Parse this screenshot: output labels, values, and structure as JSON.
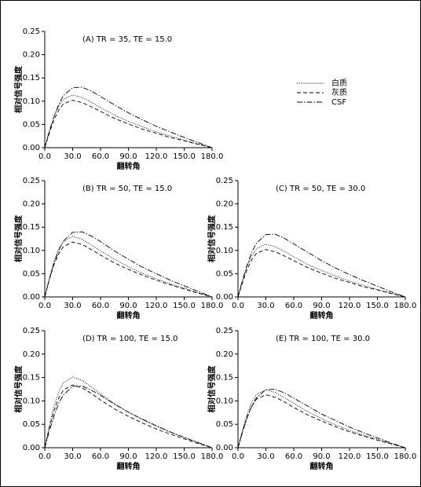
{
  "legend": [
    {
      "name": "白质",
      "color": "#000000",
      "dash": "1,1.5"
    },
    {
      "name": "灰质",
      "color": "#000000",
      "dash": "5,3"
    },
    {
      "name": "CSF",
      "color": "#000000",
      "dash": "7,2,1.5,2"
    }
  ],
  "chart_data": [
    {
      "type": "line",
      "title": "(A) TR = 35, TE = 15.0",
      "x_label": "翻转角",
      "y_label": "相对信号强度",
      "x": [
        0,
        5,
        10,
        15,
        20,
        30,
        40,
        50,
        60,
        75,
        90,
        105,
        120,
        135,
        150,
        165,
        180
      ],
      "series": [
        {
          "values": [
            0,
            0.036,
            0.067,
            0.089,
            0.104,
            0.113,
            0.108,
            0.098,
            0.086,
            0.07,
            0.057,
            0.045,
            0.034,
            0.025,
            0.016,
            0.008,
            0
          ]
        },
        {
          "values": [
            0,
            0.032,
            0.06,
            0.081,
            0.094,
            0.102,
            0.097,
            0.088,
            0.078,
            0.063,
            0.051,
            0.04,
            0.031,
            0.022,
            0.015,
            0.007,
            0
          ]
        },
        {
          "values": [
            0,
            0.036,
            0.067,
            0.093,
            0.112,
            0.129,
            0.13,
            0.122,
            0.11,
            0.092,
            0.075,
            0.06,
            0.046,
            0.034,
            0.022,
            0.011,
            0
          ]
        }
      ],
      "xlim": [
        0,
        180
      ],
      "ylim": [
        0,
        0.25
      ],
      "xticks": [
        {
          "value": 0,
          "label": "0.0"
        },
        {
          "value": 30,
          "label": "30.0"
        },
        {
          "value": 60,
          "label": "60.0"
        },
        {
          "value": 90,
          "label": "90.0"
        },
        {
          "value": 120,
          "label": "120.0"
        },
        {
          "value": 150,
          "label": "150.0"
        },
        {
          "value": 180,
          "label": "180.0"
        }
      ],
      "yticks": [
        {
          "value": 0,
          "label": "0.00"
        },
        {
          "value": 0.05,
          "label": "0.05"
        },
        {
          "value": 0.1,
          "label": "0.10"
        },
        {
          "value": 0.15,
          "label": "0.15"
        },
        {
          "value": 0.2,
          "label": "0.20"
        },
        {
          "value": 0.25,
          "label": "0.25"
        }
      ]
    },
    {
      "type": "line",
      "title": "(B) TR = 50, TE = 15.0",
      "x_label": "翻转角",
      "y_label": "相对信号强度",
      "x": [
        0,
        5,
        10,
        15,
        20,
        30,
        40,
        50,
        60,
        75,
        90,
        105,
        120,
        135,
        150,
        165,
        180
      ],
      "series": [
        {
          "values": [
            0,
            0.041,
            0.077,
            0.103,
            0.119,
            0.13,
            0.124,
            0.112,
            0.099,
            0.081,
            0.065,
            0.051,
            0.039,
            0.028,
            0.019,
            0.009,
            0
          ]
        },
        {
          "values": [
            0,
            0.038,
            0.07,
            0.093,
            0.108,
            0.118,
            0.113,
            0.102,
            0.09,
            0.073,
            0.059,
            0.047,
            0.036,
            0.026,
            0.017,
            0.008,
            0
          ]
        },
        {
          "values": [
            0,
            0.038,
            0.073,
            0.1,
            0.12,
            0.139,
            0.14,
            0.131,
            0.119,
            0.099,
            0.081,
            0.064,
            0.05,
            0.036,
            0.024,
            0.012,
            0
          ]
        }
      ],
      "xlim": [
        0,
        180
      ],
      "ylim": [
        0,
        0.25
      ],
      "xticks": [
        {
          "value": 0,
          "label": "0.0"
        },
        {
          "value": 30,
          "label": "30.0"
        },
        {
          "value": 60,
          "label": "60.0"
        },
        {
          "value": 90,
          "label": "90.0"
        },
        {
          "value": 120,
          "label": "120.0"
        },
        {
          "value": 150,
          "label": "150.0"
        },
        {
          "value": 180,
          "label": "180.0"
        }
      ],
      "yticks": [
        {
          "value": 0,
          "label": "0.00"
        },
        {
          "value": 0.05,
          "label": "0.05"
        },
        {
          "value": 0.1,
          "label": "0.10"
        },
        {
          "value": 0.15,
          "label": "0.15"
        },
        {
          "value": 0.2,
          "label": "0.20"
        },
        {
          "value": 0.25,
          "label": "0.25"
        }
      ]
    },
    {
      "type": "line",
      "title": "(C) TR = 50, TE = 30.0",
      "x_label": "翻转角",
      "y_label": "相对信号强度",
      "x": [
        0,
        5,
        10,
        15,
        20,
        30,
        40,
        50,
        60,
        75,
        90,
        105,
        120,
        135,
        150,
        165,
        180
      ],
      "series": [
        {
          "values": [
            0,
            0.036,
            0.067,
            0.089,
            0.104,
            0.113,
            0.108,
            0.098,
            0.086,
            0.07,
            0.057,
            0.045,
            0.034,
            0.025,
            0.016,
            0.008,
            0
          ]
        },
        {
          "values": [
            0,
            0.032,
            0.06,
            0.081,
            0.094,
            0.102,
            0.097,
            0.088,
            0.078,
            0.063,
            0.051,
            0.04,
            0.031,
            0.022,
            0.015,
            0.007,
            0
          ]
        },
        {
          "values": [
            0,
            0.037,
            0.07,
            0.097,
            0.116,
            0.134,
            0.135,
            0.126,
            0.114,
            0.096,
            0.078,
            0.062,
            0.048,
            0.035,
            0.023,
            0.011,
            0
          ]
        }
      ],
      "xlim": [
        0,
        180
      ],
      "ylim": [
        0,
        0.25
      ],
      "xticks": [
        {
          "value": 0,
          "label": "0.0"
        },
        {
          "value": 30,
          "label": "30.0"
        },
        {
          "value": 60,
          "label": "60.0"
        },
        {
          "value": 90,
          "label": "90.0"
        },
        {
          "value": 120,
          "label": "120.0"
        },
        {
          "value": 150,
          "label": "150.0"
        },
        {
          "value": 180,
          "label": "180.0"
        }
      ],
      "yticks": [
        {
          "value": 0,
          "label": "0.00"
        },
        {
          "value": 0.05,
          "label": "0.05"
        },
        {
          "value": 0.1,
          "label": "0.10"
        },
        {
          "value": 0.15,
          "label": "0.15"
        },
        {
          "value": 0.2,
          "label": "0.20"
        },
        {
          "value": 0.25,
          "label": "0.25"
        }
      ]
    },
    {
      "type": "line",
      "title": "(D) TR = 100, TE = 15.0",
      "x_label": "翻转角",
      "y_label": "相对信号强度",
      "x": [
        0,
        5,
        10,
        15,
        20,
        30,
        40,
        50,
        60,
        75,
        90,
        105,
        120,
        135,
        150,
        165,
        180
      ],
      "series": [
        {
          "values": [
            0,
            0.048,
            0.089,
            0.119,
            0.139,
            0.151,
            0.144,
            0.13,
            0.115,
            0.094,
            0.076,
            0.06,
            0.046,
            0.033,
            0.022,
            0.011,
            0
          ]
        },
        {
          "values": [
            0,
            0.043,
            0.079,
            0.106,
            0.123,
            0.134,
            0.128,
            0.116,
            0.102,
            0.083,
            0.067,
            0.053,
            0.04,
            0.029,
            0.019,
            0.009,
            0
          ]
        },
        {
          "values": [
            0,
            0.036,
            0.068,
            0.095,
            0.113,
            0.131,
            0.132,
            0.123,
            0.112,
            0.093,
            0.076,
            0.061,
            0.047,
            0.034,
            0.022,
            0.011,
            0
          ]
        }
      ],
      "xlim": [
        0,
        180
      ],
      "ylim": [
        0,
        0.25
      ],
      "xticks": [
        {
          "value": 0,
          "label": "0.0"
        },
        {
          "value": 30,
          "label": "30.0"
        },
        {
          "value": 60,
          "label": "60.0"
        },
        {
          "value": 90,
          "label": "90.0"
        },
        {
          "value": 120,
          "label": "120.0"
        },
        {
          "value": 150,
          "label": "150.0"
        },
        {
          "value": 180,
          "label": "180.0"
        }
      ],
      "yticks": [
        {
          "value": 0,
          "label": "0.00"
        },
        {
          "value": 0.05,
          "label": "0.05"
        },
        {
          "value": 0.1,
          "label": "0.10"
        },
        {
          "value": 0.15,
          "label": "0.15"
        },
        {
          "value": 0.2,
          "label": "0.20"
        },
        {
          "value": 0.25,
          "label": "0.25"
        }
      ]
    },
    {
      "type": "line",
      "title": "(E) TR = 100, TE = 30.0",
      "x_label": "翻转角",
      "y_label": "相对信号强度",
      "x": [
        0,
        5,
        10,
        15,
        20,
        30,
        40,
        50,
        60,
        75,
        90,
        105,
        120,
        135,
        150,
        165,
        180
      ],
      "series": [
        {
          "values": [
            0,
            0.039,
            0.073,
            0.098,
            0.114,
            0.124,
            0.118,
            0.107,
            0.095,
            0.077,
            0.062,
            0.049,
            0.037,
            0.027,
            0.018,
            0.009,
            0
          ]
        },
        {
          "values": [
            0,
            0.036,
            0.067,
            0.089,
            0.104,
            0.113,
            0.108,
            0.098,
            0.086,
            0.07,
            0.057,
            0.045,
            0.034,
            0.025,
            0.016,
            0.008,
            0
          ]
        },
        {
          "values": [
            0,
            0.034,
            0.065,
            0.09,
            0.107,
            0.124,
            0.125,
            0.117,
            0.106,
            0.089,
            0.072,
            0.058,
            0.044,
            0.032,
            0.021,
            0.01,
            0
          ]
        }
      ],
      "xlim": [
        0,
        180
      ],
      "ylim": [
        0,
        0.25
      ],
      "xticks": [
        {
          "value": 0,
          "label": "0.0"
        },
        {
          "value": 30,
          "label": "30.0"
        },
        {
          "value": 60,
          "label": "60.0"
        },
        {
          "value": 90,
          "label": "90.0"
        },
        {
          "value": 120,
          "label": "120.0"
        },
        {
          "value": 150,
          "label": "150.0"
        },
        {
          "value": 180,
          "label": "180.0"
        }
      ],
      "yticks": [
        {
          "value": 0,
          "label": "0.00"
        },
        {
          "value": 0.05,
          "label": "0.05"
        },
        {
          "value": 0.1,
          "label": "0.10"
        },
        {
          "value": 0.15,
          "label": "0.15"
        },
        {
          "value": 0.2,
          "label": "0.20"
        },
        {
          "value": 0.25,
          "label": "0.25"
        }
      ]
    }
  ]
}
